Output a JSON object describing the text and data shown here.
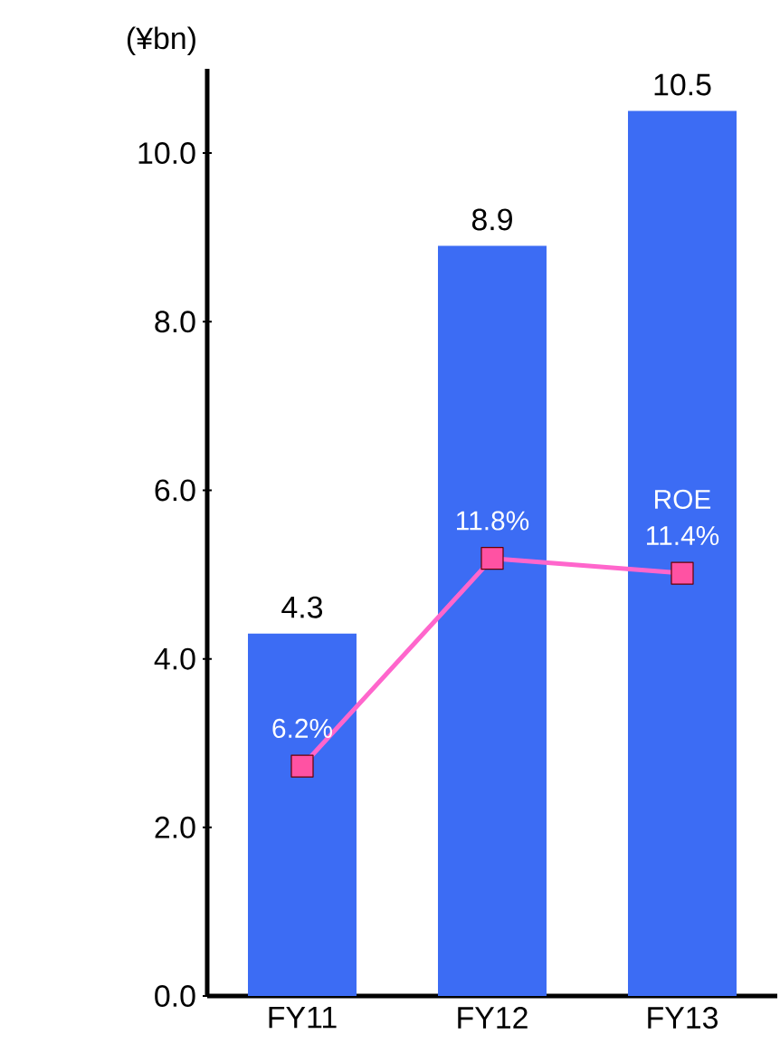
{
  "chart_data": {
    "type": "bar",
    "ylabel": "(¥bn)",
    "categories": [
      "FY11",
      "FY12",
      "FY13"
    ],
    "series": [
      {
        "color": "#3c6cf4",
        "values": [
          4.3,
          8.9,
          10.5
        ],
        "value_labels": [
          "4.3",
          "8.9",
          "10.5"
        ]
      },
      {
        "type": "line",
        "name": "ROE",
        "axis": "y2",
        "color": "#ff66cc",
        "values": [
          6.2,
          11.8,
          11.4
        ],
        "value_labels": [
          "6.2%",
          "11.8%",
          "11.4%"
        ]
      }
    ],
    "marker": "square",
    "ylim": [
      0,
      11
    ],
    "yticks": [
      {
        "value": 0,
        "label": "0.0"
      },
      {
        "value": 2,
        "label": "2.0"
      },
      {
        "value": 4,
        "label": "4.0"
      },
      {
        "value": 6,
        "label": "6.0"
      },
      {
        "value": 8,
        "label": "8.0"
      },
      {
        "value": 10,
        "label": "10.0"
      }
    ],
    "y2lim": [
      0,
      25
    ]
  }
}
